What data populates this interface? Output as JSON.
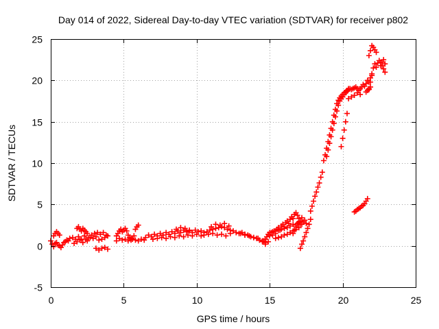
{
  "chart_data": {
    "type": "scatter",
    "title": "Day 014 of 2022, Sidereal Day-to-day VTEC variation (SDTVAR) for receiver p802",
    "xlabel": "GPS time / hours",
    "ylabel": "SDTVAR / TECUs",
    "xlim": [
      0,
      25
    ],
    "ylim": [
      -5,
      25
    ],
    "xticks": [
      "0",
      "5",
      "10",
      "15",
      "20",
      "25"
    ],
    "yticks": [
      "-5",
      "0",
      "5",
      "10",
      "15",
      "20",
      "25"
    ],
    "grid": true,
    "marker": "+",
    "color": "#ff0000",
    "series": [
      {
        "name": "SDTVAR",
        "x": [
          0.0,
          0.1,
          0.2,
          0.3,
          0.4,
          0.5,
          0.6,
          0.7,
          0.8,
          0.9,
          1.0,
          1.1,
          1.2,
          1.3,
          1.5,
          1.7,
          1.9,
          2.1,
          2.3,
          2.5,
          2.7,
          2.9,
          3.1,
          3.3,
          3.5,
          3.7,
          3.9,
          0.2,
          0.3,
          0.4,
          0.5,
          0.6,
          1.8,
          1.9,
          2.0,
          2.1,
          2.2,
          2.3,
          2.4,
          2.5,
          1.6,
          1.8,
          2.0,
          2.2,
          2.4,
          2.6,
          2.8,
          3.0,
          3.2,
          3.4,
          3.6,
          3.8,
          3.1,
          3.3,
          3.5,
          3.7,
          3.9,
          4.5,
          4.6,
          4.7,
          4.8,
          4.9,
          5.0,
          5.1,
          5.2,
          5.3,
          5.4,
          5.5,
          5.6,
          5.7,
          5.8,
          5.9,
          6.0,
          4.5,
          4.7,
          4.9,
          5.1,
          5.3,
          5.5,
          5.8,
          6.0,
          6.2,
          6.4,
          6.5,
          6.7,
          6.9,
          7.1,
          7.3,
          7.5,
          7.7,
          7.9,
          8.1,
          8.3,
          8.5,
          8.7,
          8.9,
          9.1,
          9.3,
          9.5,
          9.7,
          9.9,
          10.1,
          10.3,
          10.5,
          10.7,
          10.9,
          11.1,
          11.3,
          11.5,
          11.7,
          11.9,
          12.1,
          12.3,
          12.5,
          12.7,
          12.9,
          13.1,
          13.3,
          13.5,
          13.7,
          13.9,
          14.1,
          14.3,
          14.5,
          14.7,
          14.9,
          7.0,
          7.3,
          7.6,
          7.9,
          8.2,
          8.5,
          8.8,
          9.1,
          9.4,
          9.7,
          10.0,
          10.3,
          8.6,
          8.9,
          9.2,
          9.5,
          10.5,
          10.8,
          11.1,
          11.4,
          11.7,
          12.0,
          12.3,
          11.0,
          11.3,
          11.6,
          11.9,
          12.2,
          13.0,
          13.3,
          13.6,
          13.9,
          14.2,
          14.5,
          14.7,
          14.6,
          14.7,
          14.8,
          14.9,
          15.0,
          15.1,
          15.2,
          15.3,
          15.4,
          15.5,
          15.6,
          15.7,
          15.8,
          15.9,
          16.0,
          16.1,
          16.2,
          16.3,
          16.4,
          16.5,
          16.6,
          16.7,
          16.8,
          16.9,
          17.0,
          17.1,
          17.2,
          17.3,
          17.4,
          17.5,
          15.0,
          15.2,
          15.4,
          15.6,
          15.8,
          16.0,
          16.2,
          16.4,
          16.6,
          16.8,
          17.0,
          17.2,
          15.4,
          15.6,
          15.8,
          16.0,
          16.2,
          16.4,
          16.6,
          16.8,
          17.0,
          16.6,
          16.7,
          16.8,
          16.9,
          17.0,
          17.1,
          17.1,
          17.2,
          17.3,
          17.4,
          17.5,
          17.6,
          17.7,
          17.8,
          17.8,
          17.9,
          18.0,
          18.1,
          18.2,
          18.3,
          18.4,
          18.5,
          18.6,
          18.7,
          18.8,
          18.9,
          19.0,
          19.1,
          19.2,
          19.3,
          19.4,
          19.5,
          19.6,
          19.7,
          19.8,
          19.9,
          20.0,
          20.1,
          20.2,
          18.9,
          19.0,
          19.1,
          19.2,
          19.3,
          19.4,
          19.5,
          19.6,
          19.7,
          19.8,
          19.9,
          20.0,
          20.1,
          20.2,
          20.3,
          20.4,
          19.9,
          20.0,
          20.1,
          20.2,
          20.3,
          20.3,
          20.4,
          20.5,
          20.6,
          20.7,
          20.8,
          20.9,
          21.0,
          21.1,
          21.2,
          21.3,
          21.4,
          21.5,
          21.6,
          21.7,
          21.8,
          21.9,
          22.0,
          20.4,
          20.6,
          20.8,
          21.0,
          21.2,
          21.6,
          21.7,
          21.8,
          21.9,
          21.8,
          21.9,
          22.0,
          22.1,
          22.2,
          22.3,
          22.4,
          22.5,
          22.6,
          22.7,
          22.8,
          22.9,
          21.8,
          21.9,
          22.0,
          22.1,
          22.2,
          22.3,
          22.6,
          22.7,
          22.8,
          22.9,
          20.8,
          20.9,
          21.0,
          21.1,
          21.2,
          21.3,
          21.4,
          21.5,
          21.6,
          21.7
        ],
        "y": [
          0.6,
          0.2,
          -0.1,
          0.3,
          0.4,
          0.1,
          0.0,
          -0.2,
          0.1,
          0.4,
          0.5,
          0.7,
          0.6,
          0.9,
          1.0,
          0.8,
          1.1,
          0.8,
          1.2,
          0.6,
          1.0,
          0.9,
          1.1,
          0.7,
          0.8,
          1.0,
          1.2,
          1.2,
          1.5,
          1.7,
          1.5,
          1.3,
          2.1,
          2.3,
          2.0,
          1.8,
          2.1,
          1.9,
          1.7,
          1.5,
          0.3,
          0.5,
          0.7,
          0.4,
          0.8,
          1.0,
          1.3,
          1.5,
          1.6,
          1.4,
          1.6,
          1.3,
          -0.3,
          -0.5,
          -0.3,
          -0.2,
          -0.4,
          1.2,
          1.5,
          1.8,
          2.0,
          1.7,
          1.9,
          2.1,
          1.8,
          1.3,
          1.0,
          0.7,
          0.8,
          1.2,
          2.0,
          2.3,
          2.5,
          0.6,
          0.9,
          0.7,
          0.8,
          0.6,
          0.9,
          0.7,
          0.6,
          0.8,
          0.7,
          1.0,
          1.3,
          1.1,
          1.4,
          1.2,
          1.5,
          1.3,
          1.6,
          1.4,
          1.7,
          1.5,
          1.8,
          1.6,
          1.9,
          1.7,
          1.8,
          1.6,
          1.9,
          1.7,
          1.8,
          1.6,
          1.7,
          1.9,
          2.0,
          2.1,
          2.2,
          2.3,
          2.2,
          2.0,
          1.9,
          1.8,
          1.6,
          1.5,
          1.6,
          1.4,
          1.3,
          1.1,
          1.0,
          0.9,
          0.7,
          0.5,
          0.2,
          0.5,
          0.8,
          0.9,
          1.0,
          0.9,
          1.1,
          1.0,
          1.2,
          1.1,
          1.3,
          1.2,
          1.4,
          1.2,
          2.0,
          2.2,
          2.1,
          1.9,
          1.3,
          1.4,
          1.5,
          1.3,
          1.4,
          1.2,
          1.5,
          2.3,
          2.6,
          2.5,
          2.7,
          2.4,
          1.5,
          1.3,
          1.2,
          1.0,
          0.9,
          0.6,
          0.4,
          0.6,
          0.8,
          1.1,
          1.4,
          1.2,
          1.6,
          1.3,
          1.8,
          1.5,
          2.0,
          2.2,
          1.9,
          2.4,
          2.6,
          2.3,
          2.8,
          3.0,
          2.7,
          3.2,
          3.5,
          3.3,
          3.8,
          4.0,
          3.7,
          3.3,
          3.0,
          3.4,
          2.9,
          3.1,
          2.7,
          1.6,
          1.7,
          1.8,
          1.9,
          2.0,
          2.1,
          2.2,
          2.4,
          2.6,
          2.5,
          2.8,
          2.6,
          0.9,
          1.0,
          1.1,
          1.3,
          1.4,
          1.6,
          1.8,
          2.0,
          2.2,
          1.5,
          1.9,
          2.3,
          2.7,
          2.9,
          2.6,
          -0.3,
          0.2,
          0.6,
          1.1,
          1.6,
          2.1,
          2.6,
          3.2,
          4.2,
          4.8,
          5.4,
          6.0,
          6.5,
          7.1,
          7.6,
          8.3,
          8.9,
          10.3,
          11.0,
          11.8,
          12.6,
          13.4,
          14.2,
          15.0,
          15.8,
          16.5,
          17.2,
          17.6,
          17.9,
          18.1,
          18.3,
          18.5,
          18.6,
          10.8,
          11.6,
          12.4,
          13.2,
          14.0,
          14.8,
          15.6,
          16.3,
          17.0,
          17.5,
          17.8,
          18.0,
          18.3,
          18.5,
          18.7,
          19.0,
          12.0,
          13.0,
          14.0,
          15.0,
          16.0,
          18.8,
          18.9,
          19.0,
          18.9,
          19.0,
          19.1,
          19.2,
          19.0,
          18.8,
          19.0,
          19.2,
          19.5,
          19.3,
          19.6,
          20.0,
          19.8,
          20.3,
          20.6,
          17.8,
          18.0,
          18.2,
          18.5,
          18.3,
          18.6,
          18.8,
          19.0,
          19.2,
          18.9,
          19.8,
          20.8,
          21.5,
          22.0,
          21.6,
          22.1,
          22.4,
          22.2,
          21.8,
          21.4,
          21.0,
          23.0,
          23.6,
          24.2,
          24.0,
          23.7,
          23.4,
          21.8,
          22.2,
          22.5,
          22.0,
          4.1,
          4.2,
          4.4,
          4.5,
          4.6,
          4.8,
          4.9,
          5.1,
          5.4,
          5.7
        ]
      }
    ]
  }
}
